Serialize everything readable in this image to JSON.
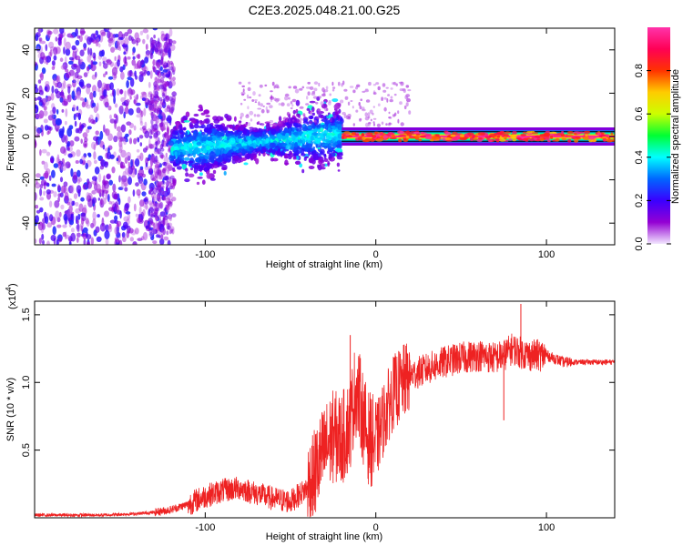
{
  "title": "C2E3.2025.048.21.00.G25",
  "chart_data": [
    {
      "type": "heatmap",
      "xlabel": "Height of straight line (km)",
      "ylabel": "Frequency (Hz)",
      "xlim": [
        -200,
        140
      ],
      "ylim": [
        -50,
        50
      ],
      "xticks": [
        -100,
        0,
        100
      ],
      "yticks": [
        -40,
        -20,
        0,
        20,
        40
      ],
      "colorbar": {
        "label": "Normalized spectral amplitude",
        "range": [
          0,
          1
        ],
        "ticks": [
          0.0,
          0.2,
          0.4,
          0.6,
          0.8
        ],
        "tick_labels": [
          "0.0",
          "0.2",
          "0.4",
          "0.6",
          "0.8"
        ],
        "colormap": [
          "#f2e6ff",
          "#9400d3",
          "#3a00ff",
          "#0066ff",
          "#00ffff",
          "#00ff33",
          "#ccff00",
          "#ffcc00",
          "#ff3300",
          "#ff0055",
          "#ff33aa"
        ]
      },
      "regions": [
        {
          "x": [
            -200,
            -120
          ],
          "description": "scattered low-amplitude noise",
          "freq_range": [
            -50,
            50
          ],
          "amplitude": [
            0.05,
            0.25
          ]
        },
        {
          "x": [
            -120,
            -20
          ],
          "description": "broadband cluster around 0 Hz",
          "freq_range": [
            -20,
            12
          ],
          "amplitude": [
            0.2,
            0.4
          ]
        },
        {
          "x": [
            -20,
            140
          ],
          "description": "narrow strong band at 0 Hz",
          "freq_range": [
            -2,
            2
          ],
          "amplitude": [
            0.7,
            1.0
          ]
        }
      ]
    },
    {
      "type": "line",
      "xlabel": "Height of straight line (km)",
      "ylabel": "SNR (10 * v/v)",
      "y_multiplier": "(x10",
      "y_multiplier_exp": "4",
      "xlim": [
        -200,
        140
      ],
      "ylim": [
        0,
        1.6
      ],
      "xticks": [
        -100,
        0,
        100
      ],
      "yticks": [
        0.5,
        1.0,
        1.5
      ],
      "ytick_labels": [
        "0.5",
        "1.0",
        "1.5"
      ],
      "color": "#ee2222",
      "series": [
        {
          "name": "SNR",
          "x": [
            -200,
            -180,
            -160,
            -140,
            -130,
            -120,
            -110,
            -100,
            -90,
            -80,
            -70,
            -60,
            -50,
            -40,
            -35,
            -30,
            -25,
            -20,
            -15,
            -12,
            -10,
            -5,
            0,
            5,
            10,
            20,
            30,
            40,
            50,
            60,
            70,
            75,
            80,
            85,
            90,
            100,
            110,
            120,
            130,
            140
          ],
          "values": [
            0.02,
            0.02,
            0.02,
            0.03,
            0.04,
            0.06,
            0.1,
            0.16,
            0.2,
            0.22,
            0.18,
            0.14,
            0.12,
            0.22,
            0.35,
            0.5,
            0.6,
            0.58,
            0.7,
            0.95,
            0.9,
            0.6,
            0.55,
            0.75,
            0.92,
            1.05,
            1.1,
            1.15,
            1.18,
            1.2,
            1.18,
            1.2,
            1.25,
            1.22,
            1.2,
            1.2,
            1.15,
            1.15,
            1.15,
            1.15
          ]
        }
      ],
      "spikes": [
        {
          "x": -15,
          "value": 1.35
        },
        {
          "x": 85,
          "value": 1.58
        },
        {
          "x": 75,
          "value": 0.72
        }
      ]
    }
  ]
}
